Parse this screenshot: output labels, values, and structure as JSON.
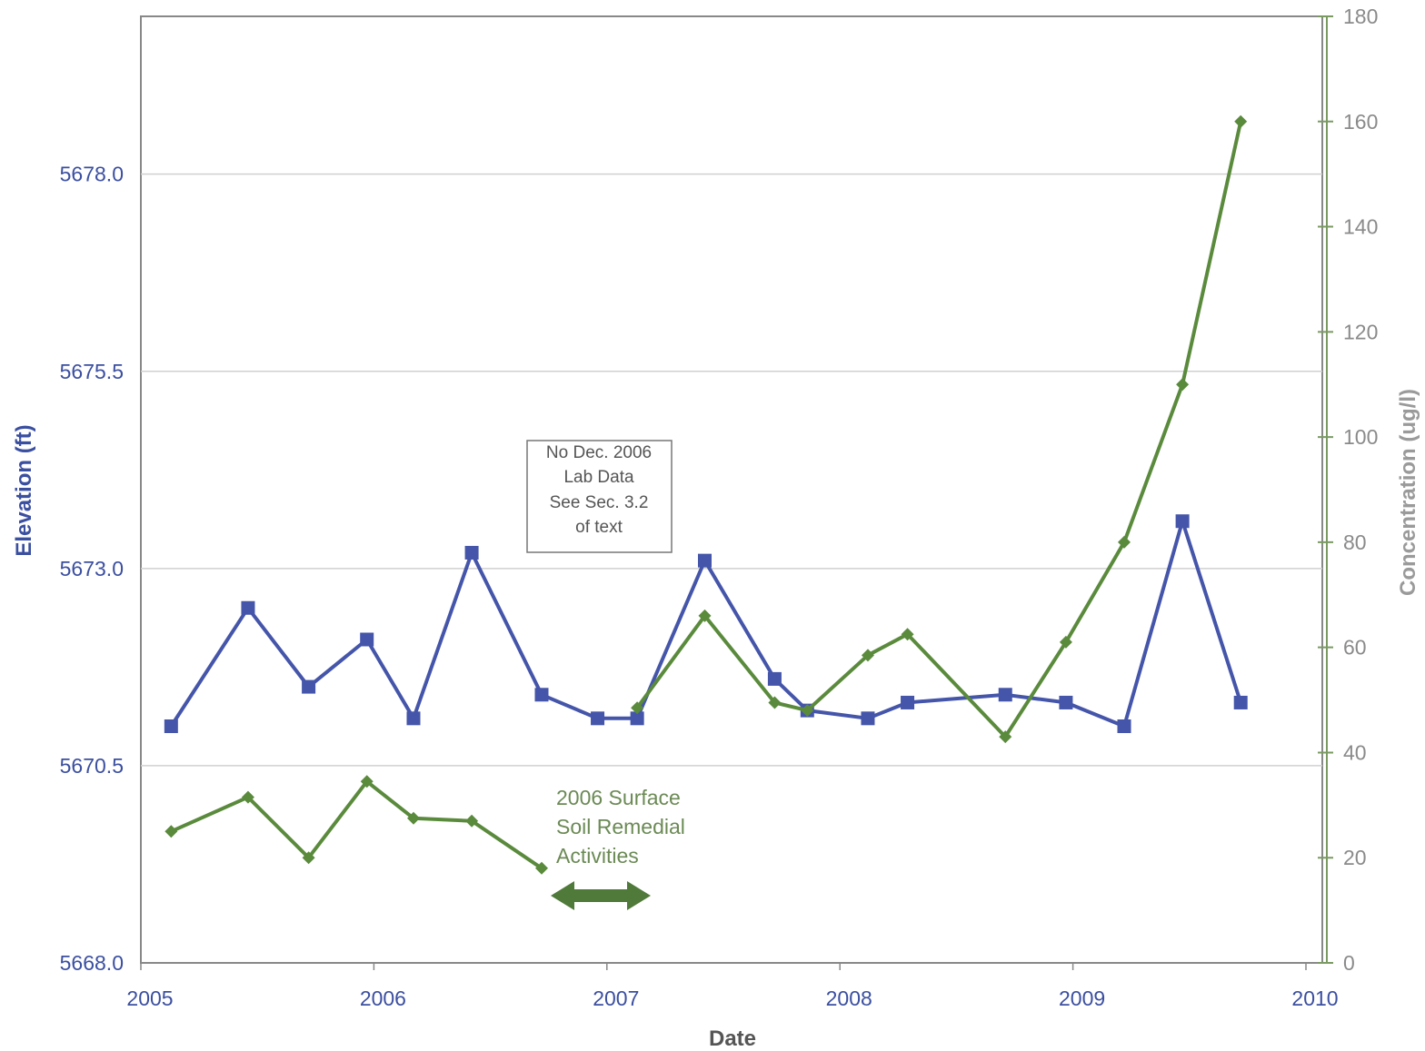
{
  "chart_data": {
    "type": "line",
    "xlabel": "Date",
    "y_left_label": "Elevation (ft)",
    "y_right_label": "Concentration (ug/l)",
    "x_range": [
      2005,
      2010
    ],
    "x_ticks": [
      "2005",
      "2006",
      "2007",
      "2008",
      "2009",
      "2010"
    ],
    "y_left_range": [
      5668.0,
      5680.0
    ],
    "y_left_ticks": [
      "5668.0",
      "5670.5",
      "5673.0",
      "5675.5",
      "5678.0"
    ],
    "y_right_range": [
      0,
      180
    ],
    "y_right_ticks": [
      "0",
      "20",
      "40",
      "60",
      "80",
      "100",
      "120",
      "140",
      "160",
      "180"
    ],
    "grid": "horizontal",
    "series": [
      {
        "axis": "left",
        "color": "#4455aa",
        "marker": "square",
        "points": [
          [
            2005.13,
            5671.0
          ],
          [
            2005.46,
            5672.5
          ],
          [
            2005.72,
            5671.5
          ],
          [
            2005.97,
            5672.1
          ],
          [
            2006.17,
            5671.1
          ],
          [
            2006.42,
            5673.2
          ],
          [
            2006.72,
            5671.4
          ],
          [
            2006.96,
            5671.1
          ],
          [
            2007.13,
            5671.1
          ],
          [
            2007.42,
            5673.1
          ],
          [
            2007.72,
            5671.6
          ],
          [
            2007.86,
            5671.2
          ],
          [
            2008.12,
            5671.1
          ],
          [
            2008.29,
            5671.3
          ],
          [
            2008.71,
            5671.4
          ],
          [
            2008.97,
            5671.3
          ],
          [
            2009.22,
            5671.0
          ],
          [
            2009.47,
            5673.6
          ],
          [
            2009.72,
            5671.3
          ]
        ]
      },
      {
        "axis": "right",
        "color": "#5a8a3c",
        "marker": "diamond",
        "segments": [
          [
            [
              2005.13,
              25
            ],
            [
              2005.46,
              31.5
            ],
            [
              2005.72,
              20
            ],
            [
              2005.97,
              34.5
            ],
            [
              2006.17,
              27.5
            ],
            [
              2006.42,
              27
            ],
            [
              2006.72,
              18
            ]
          ],
          [
            [
              2007.13,
              48.5
            ],
            [
              2007.42,
              66
            ],
            [
              2007.72,
              49.5
            ],
            [
              2007.86,
              48
            ],
            [
              2008.12,
              58.5
            ],
            [
              2008.29,
              62.5
            ],
            [
              2008.71,
              43
            ],
            [
              2008.97,
              61
            ],
            [
              2009.22,
              80
            ],
            [
              2009.47,
              110
            ],
            [
              2009.72,
              160
            ]
          ]
        ]
      }
    ],
    "annotations": {
      "note_box": [
        "No Dec. 2006",
        "Lab Data",
        "See Sec. 3.2",
        "of text"
      ],
      "remedial": [
        "2006 Surface",
        "Soil Remedial",
        "Activities"
      ]
    }
  }
}
